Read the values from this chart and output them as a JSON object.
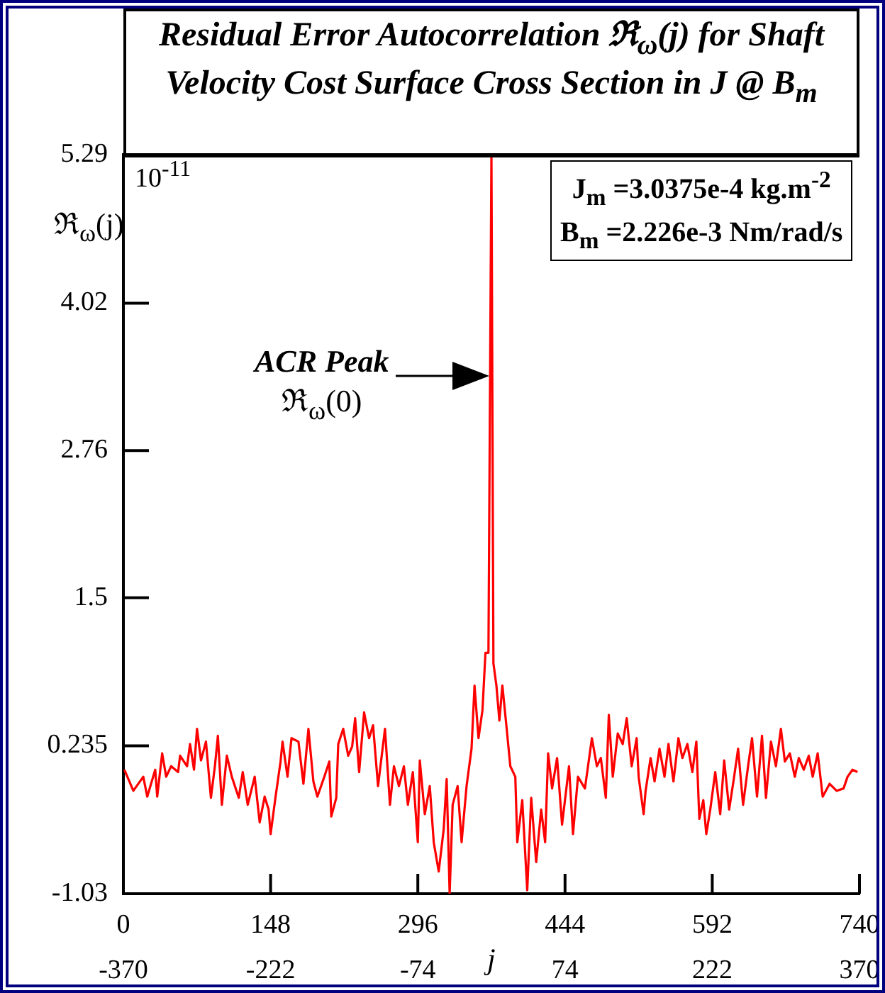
{
  "chart_data": {
    "type": "line",
    "title": "Residual Error Autocorrelation ℜ$_{ω}$(j) for Shaft Velocity Cost Surface Cross Section in J @ B$_{m}$",
    "ylabel": "ℜ$_{ω}$(j)",
    "xlabel": "j",
    "annotations": [
      "10$^{-11}$",
      "J$_{m}$ =3.0375e-4 kg.m$^{-2}$",
      "B$_{m}$ =2.226e-3 Nm/rad/s",
      "ACR Peak\nℜ$_{ω}$(0)"
    ],
    "color": "#ff0000",
    "x": [
      1,
      10,
      20,
      24,
      32,
      34,
      39,
      43,
      48,
      55,
      57,
      64,
      67,
      71,
      74,
      78,
      83,
      88,
      92,
      95,
      99,
      104,
      109,
      116,
      120,
      125,
      132,
      137,
      142,
      146,
      148,
      153,
      158,
      160,
      165,
      169,
      176,
      181,
      186,
      191,
      195,
      202,
      207,
      209,
      214,
      216,
      221,
      226,
      230,
      233,
      237,
      242,
      247,
      251,
      256,
      263,
      268,
      272,
      277,
      282,
      286,
      291,
      296,
      298,
      303,
      308,
      312,
      317,
      322,
      325,
      328,
      331,
      336,
      340,
      345,
      350,
      353,
      357,
      361,
      364,
      367,
      370,
      372,
      375,
      378,
      381,
      385,
      389,
      394,
      396,
      401,
      406,
      410,
      415,
      420,
      424,
      427,
      431,
      436,
      441,
      448,
      452,
      457,
      464,
      471,
      476,
      480,
      485,
      488,
      492,
      497,
      502,
      506,
      511,
      516,
      518,
      523,
      525,
      530,
      534,
      539,
      544,
      548,
      553,
      558,
      562,
      567,
      572,
      576,
      579,
      583,
      586,
      590,
      595,
      600,
      604,
      609,
      614,
      618,
      623,
      628,
      632,
      637,
      642,
      646,
      651,
      656,
      661,
      665,
      670,
      675,
      679,
      684,
      689,
      693,
      698,
      703,
      710,
      717,
      724,
      728,
      733,
      738
    ],
    "values": [
      0.03,
      -0.15,
      -0.03,
      -0.2,
      0.03,
      -0.2,
      0.17,
      -0.03,
      0.06,
      0.01,
      0.15,
      0.06,
      0.25,
      0.03,
      0.38,
      0.11,
      0.27,
      -0.21,
      0.06,
      0.32,
      -0.27,
      0.15,
      -0.03,
      -0.21,
      0.01,
      -0.27,
      -0.03,
      -0.42,
      -0.2,
      -0.31,
      -0.52,
      -0.2,
      0.1,
      0.27,
      -0.03,
      0.3,
      0.27,
      -0.09,
      0.38,
      -0.07,
      -0.2,
      -0.03,
      0.1,
      -0.37,
      -0.21,
      0.25,
      0.38,
      0.15,
      0.23,
      0.47,
      0.01,
      0.52,
      0.3,
      0.41,
      -0.11,
      0.38,
      -0.27,
      0.06,
      -0.11,
      0.06,
      -0.27,
      0.01,
      -0.59,
      0.11,
      -0.35,
      -0.11,
      -0.59,
      -0.84,
      -0.48,
      -0.05,
      -1.03,
      -0.27,
      -0.11,
      -0.59,
      -0.11,
      0.21,
      0.75,
      0.3,
      0.54,
      1.03,
      1.03,
      5.29,
      0.94,
      0.75,
      0.45,
      0.75,
      0.41,
      0.06,
      -0.03,
      -0.59,
      -0.23,
      -1.0,
      -0.21,
      -0.76,
      -0.31,
      -0.59,
      0.17,
      -0.13,
      0.13,
      -0.44,
      0.06,
      -0.52,
      -0.03,
      -0.13,
      0.3,
      0.06,
      0.13,
      -0.21,
      0.5,
      -0.03,
      0.34,
      0.25,
      0.47,
      0.06,
      0.3,
      -0.03,
      -0.35,
      -0.15,
      0.13,
      -0.07,
      0.21,
      -0.03,
      0.25,
      -0.07,
      0.3,
      0.13,
      0.25,
      0.01,
      0.27,
      -0.39,
      -0.23,
      -0.52,
      -0.31,
      0.01,
      -0.35,
      0.11,
      -0.31,
      -0.03,
      0.21,
      -0.27,
      0.06,
      0.3,
      -0.2,
      0.32,
      -0.21,
      0.27,
      0.06,
      0.38,
      0.1,
      0.17,
      -0.03,
      0.13,
      0.03,
      0.15,
      -0.03,
      0.17,
      -0.2,
      -0.09,
      -0.15,
      -0.13,
      -0.03,
      0.03,
      0.01
    ],
    "xlim": [
      0,
      740
    ],
    "xticks": [
      0,
      148,
      296,
      444,
      592,
      740
    ],
    "x2lim": [
      -370,
      370
    ],
    "x2ticks": [
      -370,
      -222,
      -74,
      74,
      222,
      370
    ],
    "ylim": [
      -1.03,
      5.29
    ],
    "yticks": [
      -1.03,
      0.235,
      1.5,
      2.76,
      4.02,
      5.29
    ]
  }
}
